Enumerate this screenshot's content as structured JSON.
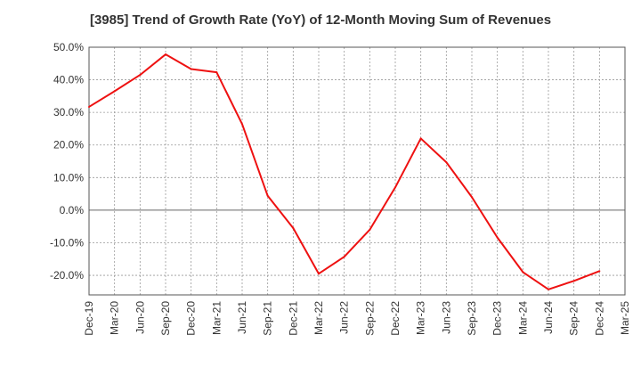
{
  "chart_data": {
    "type": "line",
    "title": "[3985]  Trend of Growth Rate (YoY) of 12-Month Moving Sum of Revenues",
    "xlabel": "",
    "ylabel": "",
    "ylim": [
      -26,
      50
    ],
    "y_ticks": [
      50,
      40,
      30,
      20,
      10,
      0,
      -10,
      -20
    ],
    "y_tick_labels": [
      "50.0%",
      "40.0%",
      "30.0%",
      "20.0%",
      "10.0%",
      "0.0%",
      "-10.0%",
      "-20.0%"
    ],
    "x_tick_labels": [
      "Dec-19",
      "Mar-20",
      "Jun-20",
      "Sep-20",
      "Dec-20",
      "Mar-21",
      "Jun-21",
      "Sep-21",
      "Dec-21",
      "Mar-22",
      "Jun-22",
      "Sep-22",
      "Dec-22",
      "Mar-23",
      "Jun-23",
      "Sep-23",
      "Dec-23",
      "Mar-24",
      "Jun-24",
      "Sep-24",
      "Dec-24",
      "Mar-25"
    ],
    "grid": true,
    "series": [
      {
        "color": "#ee1111",
        "x": [
          "Dec-19",
          "Mar-20",
          "Jun-20",
          "Sep-20",
          "Dec-20",
          "Mar-21",
          "Jun-21",
          "Sep-21",
          "Dec-21",
          "Mar-22",
          "Jun-22",
          "Sep-22",
          "Dec-22",
          "Mar-23",
          "Jun-23",
          "Sep-23",
          "Dec-23",
          "Mar-24",
          "Jun-24",
          "Sep-24",
          "Dec-24"
        ],
        "values": [
          31.7,
          36.5,
          41.5,
          47.8,
          43.3,
          42.3,
          26.4,
          4.4,
          -5.5,
          -19.5,
          -14.3,
          -6.0,
          7.0,
          22.0,
          14.7,
          4.0,
          -8.4,
          -19.0,
          -24.3,
          -21.7,
          -18.7
        ]
      }
    ]
  }
}
